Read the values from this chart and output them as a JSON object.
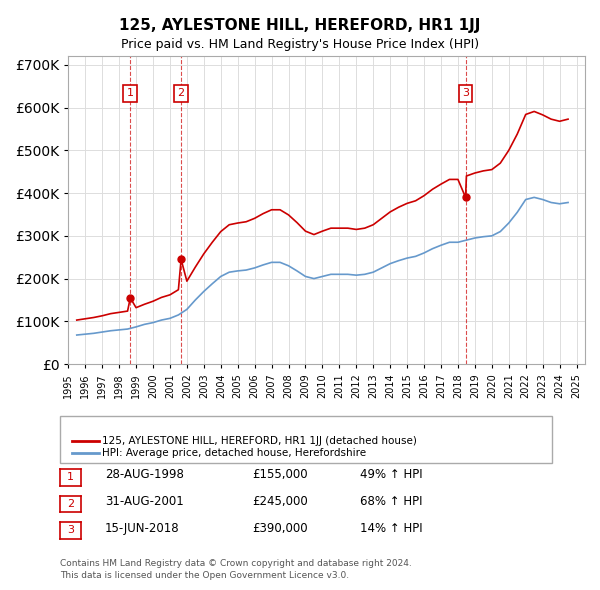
{
  "title": "125, AYLESTONE HILL, HEREFORD, HR1 1JJ",
  "subtitle": "Price paid vs. HM Land Registry's House Price Index (HPI)",
  "ylabel_ticks": [
    "£0",
    "£100K",
    "£200K",
    "£300K",
    "£400K",
    "£500K",
    "£600K",
    "£700K"
  ],
  "ytick_values": [
    0,
    100000,
    200000,
    300000,
    400000,
    500000,
    600000,
    700000
  ],
  "ylim": [
    0,
    720000
  ],
  "xlim_start": 1995.5,
  "xlim_end": 2025.5,
  "hpi_color": "#6699cc",
  "price_color": "#cc0000",
  "transaction_color": "#cc0000",
  "dashed_color": "#cc0000",
  "background_color": "#ffffff",
  "grid_color": "#dddddd",
  "legend_label_price": "125, AYLESTONE HILL, HEREFORD, HR1 1JJ (detached house)",
  "legend_label_hpi": "HPI: Average price, detached house, Herefordshire",
  "transactions": [
    {
      "label": "1",
      "date": "28-AUG-1998",
      "year": 1998.66,
      "price": 155000,
      "pct": "49%",
      "dir": "↑"
    },
    {
      "label": "2",
      "date": "31-AUG-2001",
      "year": 2001.66,
      "price": 245000,
      "pct": "68%",
      "dir": "↑"
    },
    {
      "label": "3",
      "date": "15-JUN-2018",
      "year": 2018.45,
      "price": 390000,
      "pct": "14%",
      "dir": "↑"
    }
  ],
  "footer1": "Contains HM Land Registry data © Crown copyright and database right 2024.",
  "footer2": "This data is licensed under the Open Government Licence v3.0.",
  "hpi_data": {
    "years": [
      1995.5,
      1996.0,
      1996.5,
      1997.0,
      1997.5,
      1998.0,
      1998.5,
      1999.0,
      1999.5,
      2000.0,
      2000.5,
      2001.0,
      2001.5,
      2002.0,
      2002.5,
      2003.0,
      2003.5,
      2004.0,
      2004.5,
      2005.0,
      2005.5,
      2006.0,
      2006.5,
      2007.0,
      2007.5,
      2008.0,
      2008.5,
      2009.0,
      2009.5,
      2010.0,
      2010.5,
      2011.0,
      2011.5,
      2012.0,
      2012.5,
      2013.0,
      2013.5,
      2014.0,
      2014.5,
      2015.0,
      2015.5,
      2016.0,
      2016.5,
      2017.0,
      2017.5,
      2018.0,
      2018.5,
      2019.0,
      2019.5,
      2020.0,
      2020.5,
      2021.0,
      2021.5,
      2022.0,
      2022.5,
      2023.0,
      2023.5,
      2024.0,
      2024.5
    ],
    "values": [
      68000,
      70000,
      72000,
      75000,
      78000,
      80000,
      82000,
      87000,
      93000,
      97000,
      103000,
      107000,
      115000,
      128000,
      150000,
      170000,
      188000,
      205000,
      215000,
      218000,
      220000,
      225000,
      232000,
      238000,
      238000,
      230000,
      218000,
      205000,
      200000,
      205000,
      210000,
      210000,
      210000,
      208000,
      210000,
      215000,
      225000,
      235000,
      242000,
      248000,
      252000,
      260000,
      270000,
      278000,
      285000,
      285000,
      290000,
      295000,
      298000,
      300000,
      310000,
      330000,
      355000,
      385000,
      390000,
      385000,
      378000,
      375000,
      378000
    ]
  },
  "price_line_data": {
    "years": [
      1995.5,
      1996.0,
      1996.5,
      1997.0,
      1997.5,
      1998.0,
      1998.5,
      1998.66,
      1999.0,
      1999.5,
      2000.0,
      2000.5,
      2001.0,
      2001.5,
      2001.66,
      2002.0,
      2002.5,
      2003.0,
      2003.5,
      2004.0,
      2004.5,
      2005.0,
      2005.5,
      2006.0,
      2006.5,
      2007.0,
      2007.5,
      2008.0,
      2008.5,
      2009.0,
      2009.5,
      2010.0,
      2010.5,
      2011.0,
      2011.5,
      2012.0,
      2012.5,
      2013.0,
      2013.5,
      2014.0,
      2014.5,
      2015.0,
      2015.5,
      2016.0,
      2016.5,
      2017.0,
      2017.5,
      2018.0,
      2018.45,
      2018.5,
      2019.0,
      2019.5,
      2020.0,
      2020.5,
      2021.0,
      2021.5,
      2022.0,
      2022.5,
      2023.0,
      2023.5,
      2024.0,
      2024.5
    ],
    "values": [
      103000,
      106000,
      109000,
      113000,
      118000,
      121000,
      124000,
      155000,
      132000,
      140000,
      147000,
      156000,
      162000,
      174000,
      245000,
      194000,
      227000,
      258000,
      285000,
      310000,
      326000,
      330000,
      333000,
      341000,
      352000,
      361000,
      361000,
      349000,
      331000,
      311000,
      303000,
      311000,
      318000,
      318000,
      318000,
      315000,
      318000,
      326000,
      341000,
      356000,
      367000,
      376000,
      382000,
      394000,
      409000,
      421000,
      432000,
      432000,
      390000,
      440000,
      447000,
      452000,
      455000,
      470000,
      500000,
      538000,
      584000,
      591000,
      583000,
      573000,
      568000,
      573000
    ]
  }
}
